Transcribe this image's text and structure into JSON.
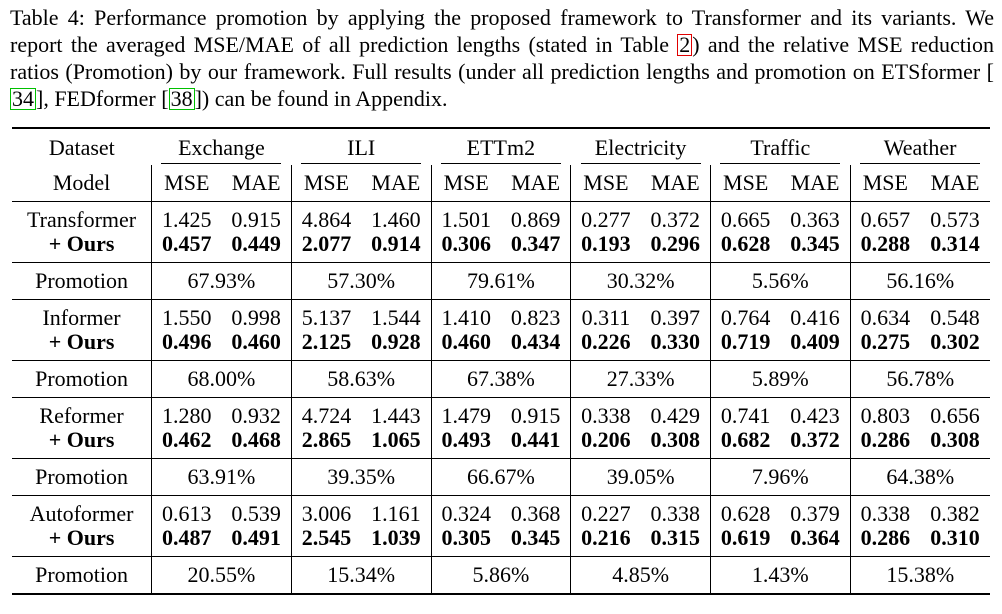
{
  "caption": {
    "part1": "Table 4: Performance promotion by applying the proposed framework to Transformer and its variants. We report the averaged MSE/MAE of all prediction lengths (stated in Table ",
    "ref_table": "2",
    "part2": ") and the relative MSE reduction ratios (Promotion) by our framework. Full results (under all prediction lengths and promotion on ETSformer [",
    "ref_ets": "34",
    "part3": "], FEDformer [",
    "ref_fed": "38",
    "part4": "]) can be found in Appendix."
  },
  "table": {
    "dataset_header": "Dataset",
    "model_header": "Model",
    "datasets": [
      "Exchange",
      "ILI",
      "ETTm2",
      "Electricity",
      "Traffic",
      "Weather"
    ],
    "metrics": [
      "MSE",
      "MAE"
    ],
    "groups": [
      {
        "model": "Transformer",
        "ours_label": "+ Ours",
        "base": [
          "1.425",
          "0.915",
          "4.864",
          "1.460",
          "1.501",
          "0.869",
          "0.277",
          "0.372",
          "0.665",
          "0.363",
          "0.657",
          "0.573"
        ],
        "ours": [
          "0.457",
          "0.449",
          "2.077",
          "0.914",
          "0.306",
          "0.347",
          "0.193",
          "0.296",
          "0.628",
          "0.345",
          "0.288",
          "0.314"
        ],
        "promotion_label": "Promotion",
        "promotion": [
          "67.93%",
          "57.30%",
          "79.61%",
          "30.32%",
          "5.56%",
          "56.16%"
        ]
      },
      {
        "model": "Informer",
        "ours_label": "+ Ours",
        "base": [
          "1.550",
          "0.998",
          "5.137",
          "1.544",
          "1.410",
          "0.823",
          "0.311",
          "0.397",
          "0.764",
          "0.416",
          "0.634",
          "0.548"
        ],
        "ours": [
          "0.496",
          "0.460",
          "2.125",
          "0.928",
          "0.460",
          "0.434",
          "0.226",
          "0.330",
          "0.719",
          "0.409",
          "0.275",
          "0.302"
        ],
        "promotion_label": "Promotion",
        "promotion": [
          "68.00%",
          "58.63%",
          "67.38%",
          "27.33%",
          "5.89%",
          "56.78%"
        ]
      },
      {
        "model": "Reformer",
        "ours_label": "+ Ours",
        "base": [
          "1.280",
          "0.932",
          "4.724",
          "1.443",
          "1.479",
          "0.915",
          "0.338",
          "0.429",
          "0.741",
          "0.423",
          "0.803",
          "0.656"
        ],
        "ours": [
          "0.462",
          "0.468",
          "2.865",
          "1.065",
          "0.493",
          "0.441",
          "0.206",
          "0.308",
          "0.682",
          "0.372",
          "0.286",
          "0.308"
        ],
        "promotion_label": "Promotion",
        "promotion": [
          "63.91%",
          "39.35%",
          "66.67%",
          "39.05%",
          "7.96%",
          "64.38%"
        ]
      },
      {
        "model": "Autoformer",
        "ours_label": "+ Ours",
        "base": [
          "0.613",
          "0.539",
          "3.006",
          "1.161",
          "0.324",
          "0.368",
          "0.227",
          "0.338",
          "0.628",
          "0.379",
          "0.338",
          "0.382"
        ],
        "ours": [
          "0.487",
          "0.491",
          "2.545",
          "1.039",
          "0.305",
          "0.345",
          "0.216",
          "0.315",
          "0.619",
          "0.364",
          "0.286",
          "0.310"
        ],
        "promotion_label": "Promotion",
        "promotion": [
          "20.55%",
          "15.34%",
          "5.86%",
          "4.85%",
          "1.43%",
          "15.38%"
        ]
      }
    ]
  }
}
